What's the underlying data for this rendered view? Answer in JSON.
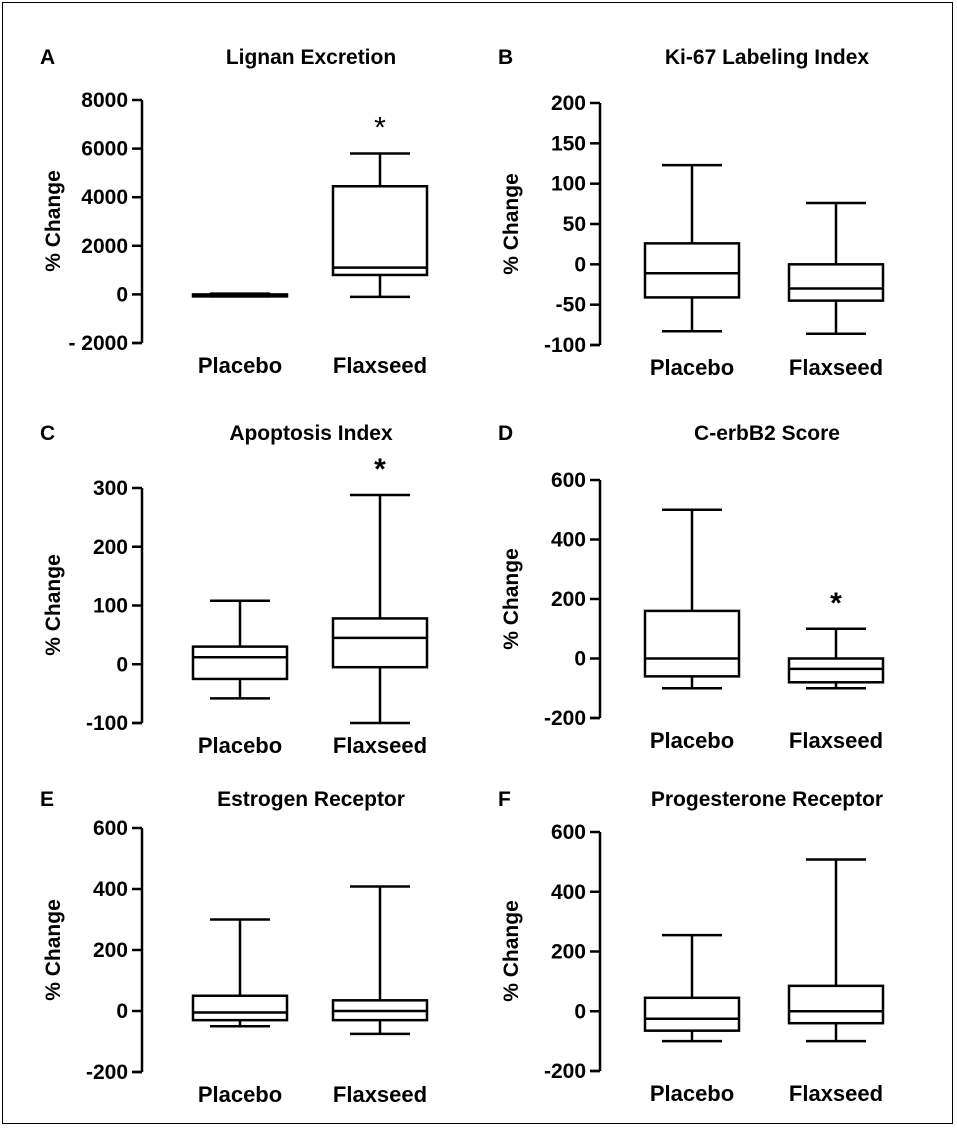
{
  "chart_data": [
    {
      "type": "box",
      "panel": "A",
      "title": "Lignan Excretion",
      "ylabel": "% Change",
      "ylim": [
        -2000,
        8000
      ],
      "yticks": [
        -2000,
        0,
        2000,
        4000,
        6000,
        8000
      ],
      "ytick_labels": [
        "- 2000",
        "0",
        "2000",
        "4000",
        "6000",
        "8000"
      ],
      "categories": [
        "Placebo",
        "Flaxseed"
      ],
      "boxes": [
        {
          "min": -80,
          "q1": -40,
          "median": -20,
          "q3": 0,
          "max": 30
        },
        {
          "min": -100,
          "q1": 800,
          "median": 1100,
          "q3": 4450,
          "max": 5800
        }
      ],
      "annotations": [
        {
          "category": "Flaxseed",
          "text": "*",
          "weight": "normal"
        }
      ]
    },
    {
      "type": "box",
      "panel": "B",
      "title": "Ki-67 Labeling Index",
      "ylabel": "% Change",
      "ylim": [
        -100,
        200
      ],
      "yticks": [
        -100,
        -50,
        0,
        50,
        100,
        150,
        200
      ],
      "ytick_labels": [
        "-100",
        "-50",
        "0",
        "50",
        "100",
        "150",
        "200"
      ],
      "categories": [
        "Placebo",
        "Flaxseed"
      ],
      "boxes": [
        {
          "min": -83,
          "q1": -41,
          "median": -11,
          "q3": 26,
          "max": 123
        },
        {
          "min": -86,
          "q1": -45,
          "median": -30,
          "q3": 0,
          "max": 76
        }
      ],
      "annotations": []
    },
    {
      "type": "box",
      "panel": "C",
      "title": "Apoptosis Index",
      "ylabel": "% Change",
      "ylim": [
        -100,
        300
      ],
      "yticks": [
        -100,
        0,
        100,
        200,
        300
      ],
      "ytick_labels": [
        "-100",
        "0",
        "100",
        "200",
        "300"
      ],
      "categories": [
        "Placebo",
        "Flaxseed"
      ],
      "boxes": [
        {
          "min": -58,
          "q1": -25,
          "median": 12,
          "q3": 30,
          "max": 108
        },
        {
          "min": -100,
          "q1": -5,
          "median": 45,
          "q3": 78,
          "max": 288
        }
      ],
      "annotations": [
        {
          "category": "Flaxseed",
          "text": "*",
          "weight": "bold"
        }
      ]
    },
    {
      "type": "box",
      "panel": "D",
      "title": "C-erbB2 Score",
      "ylabel": "% Change",
      "ylim": [
        -200,
        600
      ],
      "yticks": [
        -200,
        0,
        200,
        400,
        600
      ],
      "ytick_labels": [
        "-200",
        "0",
        "200",
        "400",
        "600"
      ],
      "categories": [
        "Placebo",
        "Flaxseed"
      ],
      "boxes": [
        {
          "min": -100,
          "q1": -60,
          "median": 0,
          "q3": 160,
          "max": 500
        },
        {
          "min": -100,
          "q1": -80,
          "median": -35,
          "q3": 0,
          "max": 100
        }
      ],
      "annotations": [
        {
          "category": "Flaxseed",
          "text": "*",
          "weight": "bold"
        }
      ]
    },
    {
      "type": "box",
      "panel": "E",
      "title": "Estrogen Receptor",
      "ylabel": "% Change",
      "ylim": [
        -200,
        600
      ],
      "yticks": [
        -200,
        0,
        200,
        400,
        600
      ],
      "ytick_labels": [
        "-200",
        "0",
        "200",
        "400",
        "600"
      ],
      "categories": [
        "Placebo",
        "Flaxseed"
      ],
      "boxes": [
        {
          "min": -50,
          "q1": -30,
          "median": -5,
          "q3": 50,
          "max": 300
        },
        {
          "min": -75,
          "q1": -30,
          "median": 0,
          "q3": 35,
          "max": 408
        }
      ],
      "annotations": []
    },
    {
      "type": "box",
      "panel": "F",
      "title": "Progesterone Receptor",
      "ylabel": "% Change",
      "ylim": [
        -200,
        600
      ],
      "yticks": [
        -200,
        0,
        200,
        400,
        600
      ],
      "ytick_labels": [
        "-200",
        "0",
        "200",
        "400",
        "600"
      ],
      "categories": [
        "Placebo",
        "Flaxseed"
      ],
      "boxes": [
        {
          "min": -100,
          "q1": -65,
          "median": -25,
          "q3": 45,
          "max": 255
        },
        {
          "min": -100,
          "q1": -40,
          "median": 0,
          "q3": 85,
          "max": 508
        }
      ],
      "annotations": []
    }
  ]
}
